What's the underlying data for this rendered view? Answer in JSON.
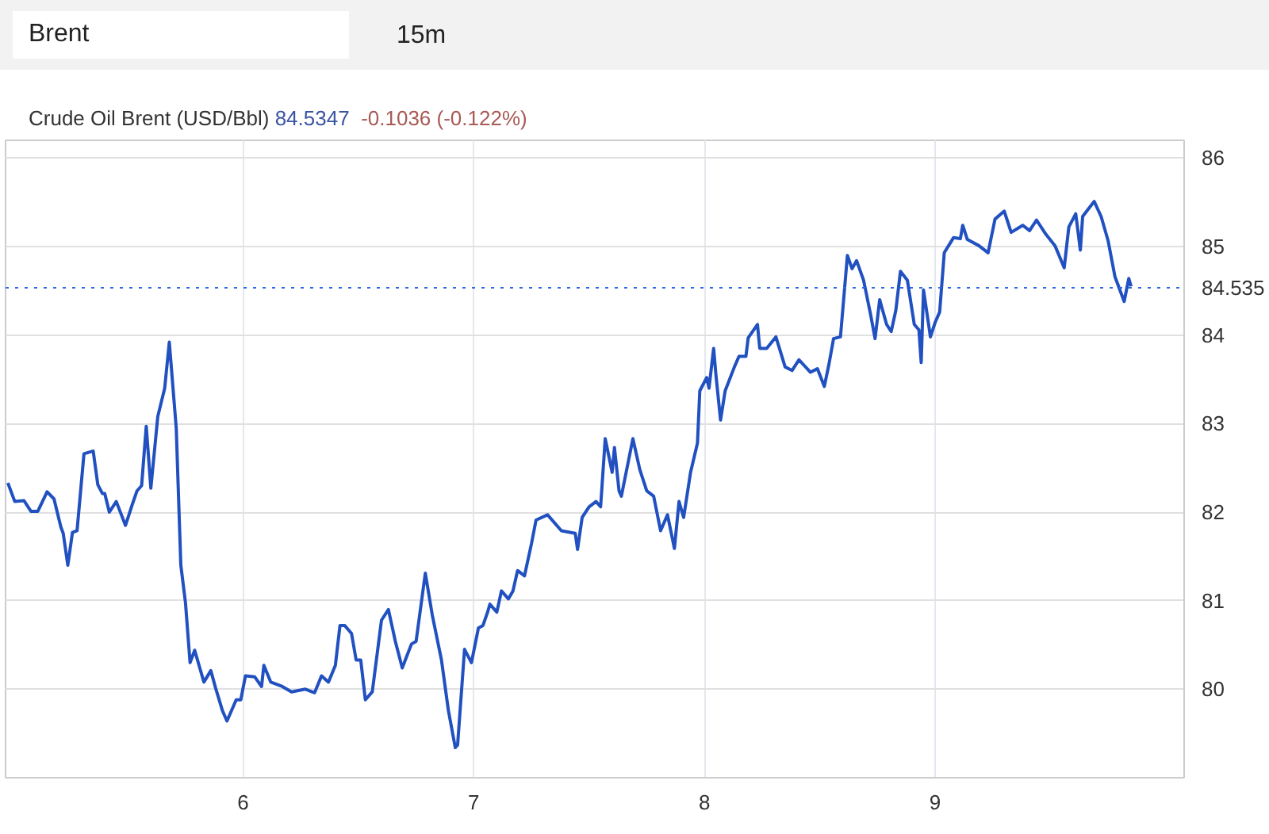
{
  "chart_data": {
    "type": "line",
    "title": "Crude Oil Brent (USD/Bbl)",
    "annotations": [
      "Brent",
      "15m",
      "84.5347",
      "-0.1036 (-0.122%)"
    ],
    "x": [
      4.98,
      5.01,
      5.05,
      5.08,
      5.11,
      5.15,
      5.18,
      5.21,
      5.22,
      5.24,
      5.26,
      5.28,
      5.31,
      5.35,
      5.37,
      5.39,
      5.4,
      5.42,
      5.45,
      5.49,
      5.52,
      5.54,
      5.56,
      5.58,
      5.6,
      5.63,
      5.66,
      5.68,
      5.71,
      5.73,
      5.75,
      5.77,
      5.79,
      5.83,
      5.86,
      5.88,
      5.91,
      5.93,
      5.97,
      5.99,
      6.01,
      6.05,
      6.08,
      6.09,
      6.12,
      6.17,
      6.21,
      6.27,
      6.31,
      6.34,
      6.37,
      6.4,
      6.42,
      6.44,
      6.47,
      6.49,
      6.51,
      6.53,
      6.56,
      6.6,
      6.63,
      6.66,
      6.69,
      6.73,
      6.75,
      6.79,
      6.82,
      6.86,
      6.89,
      6.92,
      6.93,
      6.96,
      6.99,
      7.02,
      7.04,
      7.06,
      7.07,
      7.1,
      7.12,
      7.15,
      7.17,
      7.19,
      7.22,
      7.25,
      7.27,
      7.32,
      7.38,
      7.44,
      7.45,
      7.47,
      7.5,
      7.53,
      7.55,
      7.57,
      7.6,
      7.61,
      7.63,
      7.64,
      7.69,
      7.72,
      7.75,
      7.78,
      7.81,
      7.84,
      7.87,
      7.89,
      7.91,
      7.94,
      7.97,
      7.98,
      8.01,
      8.02,
      8.04,
      8.05,
      8.07,
      8.09,
      8.13,
      8.15,
      8.18,
      8.19,
      8.23,
      8.24,
      8.27,
      8.31,
      8.35,
      8.38,
      8.41,
      8.46,
      8.49,
      8.52,
      8.54,
      8.56,
      8.59,
      8.62,
      8.64,
      8.66,
      8.69,
      8.72,
      8.74,
      8.76,
      8.79,
      8.81,
      8.83,
      8.85,
      8.88,
      8.91,
      8.93,
      8.94,
      8.95,
      8.98,
      9.0,
      9.02,
      9.04,
      9.08,
      9.11,
      9.12,
      9.14,
      9.19,
      9.23,
      9.26,
      9.3,
      9.33,
      9.38,
      9.41,
      9.44,
      9.48,
      9.52,
      9.56,
      9.58,
      9.61,
      9.63,
      9.64,
      9.69,
      9.72,
      9.75,
      9.78,
      9.82,
      9.84,
      9.85
    ],
    "series": [
      {
        "color": "#2150c0",
        "values": [
          82.33,
          82.12,
          82.13,
          82.01,
          82.01,
          82.23,
          82.15,
          81.83,
          81.76,
          81.4,
          81.77,
          81.79,
          82.66,
          82.69,
          82.31,
          82.21,
          82.21,
          82.0,
          82.12,
          81.85,
          82.09,
          82.24,
          82.3,
          82.97,
          82.27,
          83.08,
          83.4,
          83.92,
          82.95,
          81.4,
          80.98,
          80.3,
          80.44,
          80.08,
          80.21,
          80.02,
          79.76,
          79.64,
          79.88,
          79.88,
          80.15,
          80.14,
          80.03,
          80.27,
          80.08,
          80.03,
          79.97,
          80.0,
          79.96,
          80.15,
          80.08,
          80.27,
          80.72,
          80.72,
          80.63,
          80.33,
          80.33,
          79.88,
          79.97,
          80.78,
          80.9,
          80.54,
          80.24,
          80.51,
          80.54,
          81.31,
          80.84,
          80.33,
          79.76,
          79.34,
          79.37,
          80.45,
          80.3,
          80.69,
          80.72,
          80.87,
          80.96,
          80.87,
          81.11,
          81.02,
          81.11,
          81.34,
          81.28,
          81.64,
          81.91,
          81.97,
          81.79,
          81.76,
          81.58,
          81.94,
          82.06,
          82.12,
          82.06,
          82.83,
          82.45,
          82.73,
          82.24,
          82.18,
          82.83,
          82.48,
          82.24,
          82.18,
          81.79,
          81.97,
          81.59,
          82.12,
          81.94,
          82.45,
          82.78,
          83.37,
          83.52,
          83.4,
          83.85,
          83.55,
          83.04,
          83.37,
          83.64,
          83.76,
          83.76,
          83.97,
          84.12,
          83.85,
          83.85,
          83.98,
          83.64,
          83.6,
          83.72,
          83.58,
          83.62,
          83.42,
          83.67,
          83.96,
          83.98,
          84.9,
          84.75,
          84.84,
          84.62,
          84.24,
          83.96,
          84.4,
          84.12,
          84.04,
          84.28,
          84.72,
          84.62,
          84.12,
          84.06,
          83.69,
          84.51,
          83.98,
          84.14,
          84.26,
          84.93,
          85.1,
          85.09,
          85.24,
          85.08,
          85.01,
          84.93,
          85.31,
          85.4,
          85.16,
          85.24,
          85.18,
          85.3,
          85.14,
          85.01,
          84.76,
          85.22,
          85.37,
          84.96,
          85.34,
          85.51,
          85.34,
          85.07,
          84.66,
          84.38,
          84.64,
          84.55
        ]
      }
    ],
    "xlim": [
      4.97,
      10.08
    ],
    "xticks": [
      6,
      7,
      8,
      9
    ],
    "ylim": [
      79.0,
      86.2
    ],
    "yticks": [
      80,
      81,
      82,
      83,
      84,
      85,
      86
    ],
    "ref_lines": [
      {
        "axis": "y",
        "value": 84.535,
        "label": "84.535",
        "color": "#2a6ae8",
        "line_style": "dotted"
      }
    ],
    "grid": true,
    "marker": "none",
    "line_style": "solid"
  }
}
